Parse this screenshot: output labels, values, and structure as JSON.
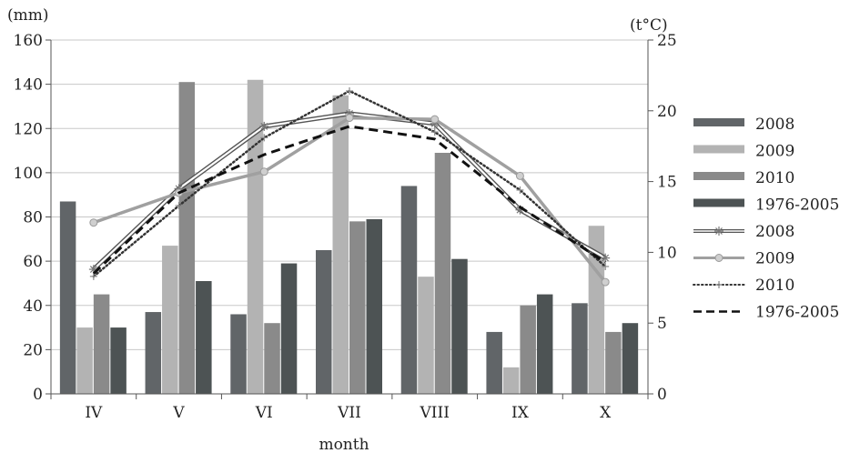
{
  "chart_data": {
    "type": "bar+line",
    "xlabel": "month",
    "left_axis": {
      "unit": "(mm)",
      "range": [
        0,
        160
      ],
      "ticks": [
        0,
        20,
        40,
        60,
        80,
        100,
        120,
        140,
        160
      ]
    },
    "right_axis": {
      "unit": "(t°C)",
      "range": [
        0,
        25
      ],
      "ticks": [
        0,
        5,
        10,
        15,
        20,
        25
      ]
    },
    "grid": "horizontal",
    "legend_position": "right",
    "categories": [
      "IV",
      "V",
      "VI",
      "VII",
      "VIII",
      "IX",
      "X"
    ],
    "bar_series": [
      {
        "name": "2008",
        "color": "#616568",
        "values": [
          87,
          37,
          36,
          65,
          94,
          28,
          41
        ]
      },
      {
        "name": "2009",
        "color": "#b3b3b3",
        "values": [
          30,
          67,
          142,
          135,
          53,
          12,
          76
        ]
      },
      {
        "name": "2010",
        "color": "#8a8a8a",
        "values": [
          45,
          141,
          32,
          78,
          109,
          40,
          28
        ]
      },
      {
        "name": "1976-2005",
        "color": "#4d5354",
        "values": [
          30,
          51,
          59,
          79,
          61,
          45,
          32
        ]
      }
    ],
    "line_series": [
      {
        "name": "2008",
        "color": "#555555",
        "style": "double",
        "marker": "star",
        "values": [
          8.8,
          14.5,
          18.9,
          19.8,
          19.1,
          13.0,
          9.6
        ]
      },
      {
        "name": "2009",
        "color": "#a0a0a0",
        "style": "solid",
        "marker": "circle",
        "values": [
          12.1,
          14.2,
          15.7,
          19.5,
          19.4,
          15.4,
          7.9
        ]
      },
      {
        "name": "2010",
        "color": "#333333",
        "style": "dotted",
        "marker": "plus",
        "values": [
          8.3,
          13.3,
          18.1,
          21.4,
          18.5,
          14.4,
          9.0
        ]
      },
      {
        "name": "1976-2005",
        "color": "#111111",
        "style": "dashed",
        "marker": "none",
        "values": [
          8.5,
          14.2,
          16.9,
          18.9,
          18.0,
          13.2,
          9.3
        ]
      }
    ]
  }
}
